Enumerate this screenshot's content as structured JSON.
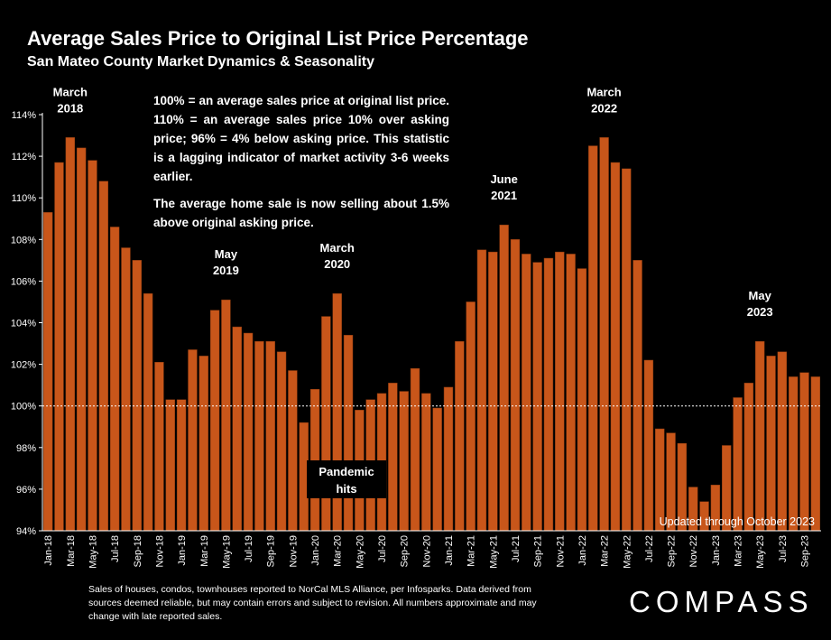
{
  "title": "Average Sales Price to Original List Price Percentage",
  "subtitle": "San Mateo County Market Dynamics & Seasonality",
  "note": {
    "line1": "100% = an average sales price at original list price. 110% = an average sales price 10% over asking price; 96% = 4% below asking price. This statistic is a lagging indicator of market activity 3-6 weeks earlier.",
    "line2": "The average home sale is now selling about 1.5% above original asking price."
  },
  "footer": "Sales of houses, condos, townhouses reported to NorCal MLS Alliance, per Infosparks. Data derived from sources deemed reliable, but may contain errors and subject to revision. All numbers approximate and may change with late reported sales.",
  "logo": "COMPASS",
  "colors": {
    "bar": "#C8561A",
    "bar_edge": "#8a3a10",
    "background": "#000000",
    "text": "#ffffff",
    "reference_line": "#ffffff"
  },
  "chart_data": {
    "type": "bar",
    "title": "Average Sales Price to Original List Price Percentage",
    "subtitle": "San Mateo County Market Dynamics & Seasonality",
    "xlabel": "",
    "ylabel": "",
    "ylim": [
      94,
      114
    ],
    "yticks": [
      94,
      96,
      98,
      100,
      102,
      104,
      106,
      108,
      110,
      112,
      114
    ],
    "ytick_labels": [
      "94%",
      "96%",
      "98%",
      "100%",
      "102%",
      "104%",
      "106%",
      "108%",
      "110%",
      "112%",
      "114%"
    ],
    "reference_line": 100,
    "grid": false,
    "categories": [
      "Jan-18",
      "Feb-18",
      "Mar-18",
      "Apr-18",
      "May-18",
      "Jun-18",
      "Jul-18",
      "Aug-18",
      "Sep-18",
      "Oct-18",
      "Nov-18",
      "Dec-18",
      "Jan-19",
      "Feb-19",
      "Mar-19",
      "Apr-19",
      "May-19",
      "Jun-19",
      "Jul-19",
      "Aug-19",
      "Sep-19",
      "Oct-19",
      "Nov-19",
      "Dec-19",
      "Jan-20",
      "Feb-20",
      "Mar-20",
      "Apr-20",
      "May-20",
      "Jun-20",
      "Jul-20",
      "Aug-20",
      "Sep-20",
      "Oct-20",
      "Nov-20",
      "Dec-20",
      "Jan-21",
      "Feb-21",
      "Mar-21",
      "Apr-21",
      "May-21",
      "Jun-21",
      "Jul-21",
      "Aug-21",
      "Sep-21",
      "Oct-21",
      "Nov-21",
      "Dec-21",
      "Jan-22",
      "Feb-22",
      "Mar-22",
      "Apr-22",
      "May-22",
      "Jun-22",
      "Jul-22",
      "Aug-22",
      "Sep-22",
      "Oct-22",
      "Nov-22",
      "Dec-22",
      "Jan-23",
      "Feb-23",
      "Mar-23",
      "Apr-23",
      "May-23",
      "Jun-23",
      "Jul-23",
      "Aug-23",
      "Sep-23",
      "Oct-23"
    ],
    "tick_label_every": 2,
    "values": [
      109.3,
      111.7,
      112.9,
      112.4,
      111.8,
      110.8,
      108.6,
      107.6,
      107.0,
      105.4,
      102.1,
      100.3,
      100.3,
      102.7,
      102.4,
      104.6,
      105.1,
      103.8,
      103.5,
      103.1,
      103.1,
      102.6,
      101.7,
      99.2,
      100.8,
      104.3,
      105.4,
      103.4,
      99.8,
      100.3,
      100.6,
      101.1,
      100.7,
      101.8,
      100.6,
      99.9,
      100.9,
      103.1,
      105.0,
      107.5,
      107.4,
      108.7,
      108.0,
      107.3,
      106.9,
      107.1,
      107.4,
      107.3,
      106.6,
      112.5,
      112.9,
      111.7,
      111.4,
      107.0,
      102.2,
      98.9,
      98.7,
      98.2,
      96.1,
      95.4,
      96.2,
      98.1,
      100.4,
      101.1,
      103.1,
      102.4,
      102.6,
      101.4,
      101.6,
      101.4
    ],
    "annotations": [
      {
        "text": [
          "March",
          "2018"
        ],
        "at": "Mar-18"
      },
      {
        "text": [
          "May",
          "2019"
        ],
        "at": "May-19"
      },
      {
        "text": [
          "March",
          "2020"
        ],
        "at": "Mar-20"
      },
      {
        "text": [
          "June",
          "2021"
        ],
        "at": "Jun-21"
      },
      {
        "text": [
          "March",
          "2022"
        ],
        "at": "Mar-22"
      },
      {
        "text": [
          "May",
          "2023"
        ],
        "at": "May-23"
      },
      {
        "text": [
          "Pandemic",
          "hits"
        ],
        "at": "Apr-20",
        "boxed": true
      },
      {
        "text": [
          "Updated through October 2023"
        ],
        "at": "Oct-23",
        "align": "right"
      }
    ]
  }
}
